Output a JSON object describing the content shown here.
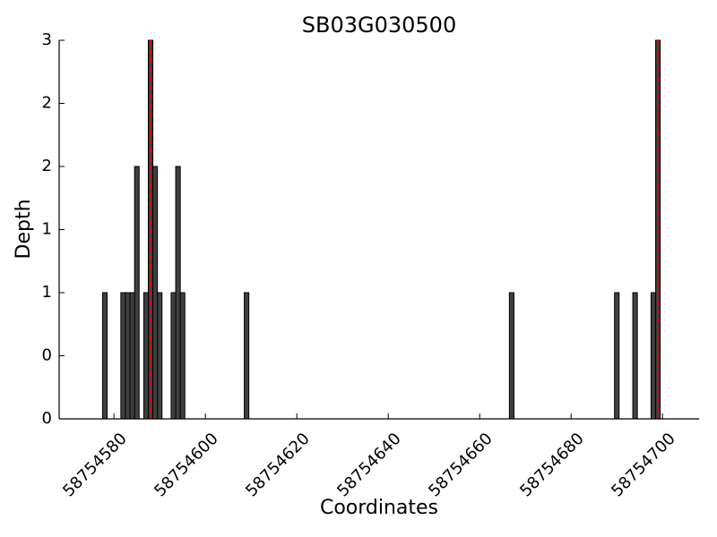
{
  "chart_data": {
    "type": "bar",
    "title": "SB03G030500",
    "x_label": "Coordinates",
    "y_label": "Depth",
    "x": [
      58754578,
      58754582,
      58754583,
      58754584,
      58754585,
      58754587,
      58754588,
      58754589,
      58754590,
      58754593,
      58754594,
      58754595,
      58754609,
      58754667,
      58754690,
      58754694,
      58754698,
      58754699
    ],
    "values": [
      1,
      1,
      1,
      1,
      2,
      1,
      3,
      2,
      1,
      1,
      2,
      1,
      1,
      1,
      1,
      1,
      1,
      3
    ],
    "color": "#404040",
    "edge_color": "#000000",
    "vlines": [
      58754588,
      58754699
    ],
    "vline_color": "#dd0000",
    "xlim": [
      58754568,
      58754708
    ],
    "ylim": [
      0,
      3
    ],
    "xticks": [
      58754580,
      58754600,
      58754620,
      58754640,
      58754660,
      58754680,
      58754700
    ],
    "yticks": [
      0,
      {
        "value": 0.5,
        "label": "0"
      },
      1,
      {
        "value": 1.5,
        "label": "1"
      },
      2,
      {
        "value": 2.5,
        "label": "2"
      },
      3
    ]
  }
}
